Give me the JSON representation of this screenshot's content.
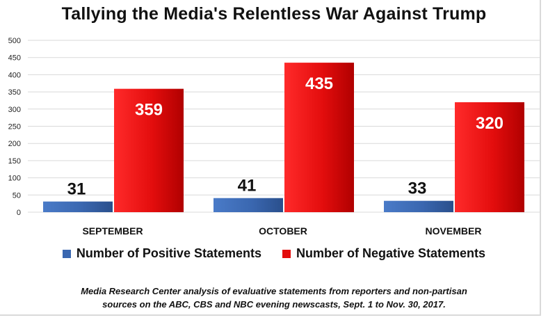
{
  "title": "Tallying the Media's Relentless War Against Trump",
  "source_note": {
    "line1": "Media Research Center analysis of evaluative statements from reporters and non-partisan",
    "line2": "sources on the ABC, CBS and NBC evening newscasts, Sept. 1 to Nov. 30, 2017."
  },
  "chart_data": {
    "type": "bar",
    "title": "Tallying the Media's Relentless War Against Trump",
    "categories": [
      "SEPTEMBER",
      "OCTOBER",
      "NOVEMBER"
    ],
    "series": [
      {
        "name": "Number of Positive Statements",
        "values": [
          31,
          41,
          33
        ],
        "color": "#3a67b0"
      },
      {
        "name": "Number of Negative Statements",
        "values": [
          359,
          435,
          320
        ],
        "color": "#e30d0d"
      }
    ],
    "ylim": [
      0,
      500
    ],
    "yticks": [
      0,
      50,
      100,
      150,
      200,
      250,
      300,
      350,
      400,
      450,
      500
    ],
    "grid": true,
    "legend": "bottom",
    "data_labels": true
  },
  "colors": {
    "positive": "#3a67b0",
    "negative": "#e30d0d",
    "grid": "#d9d9d9"
  }
}
